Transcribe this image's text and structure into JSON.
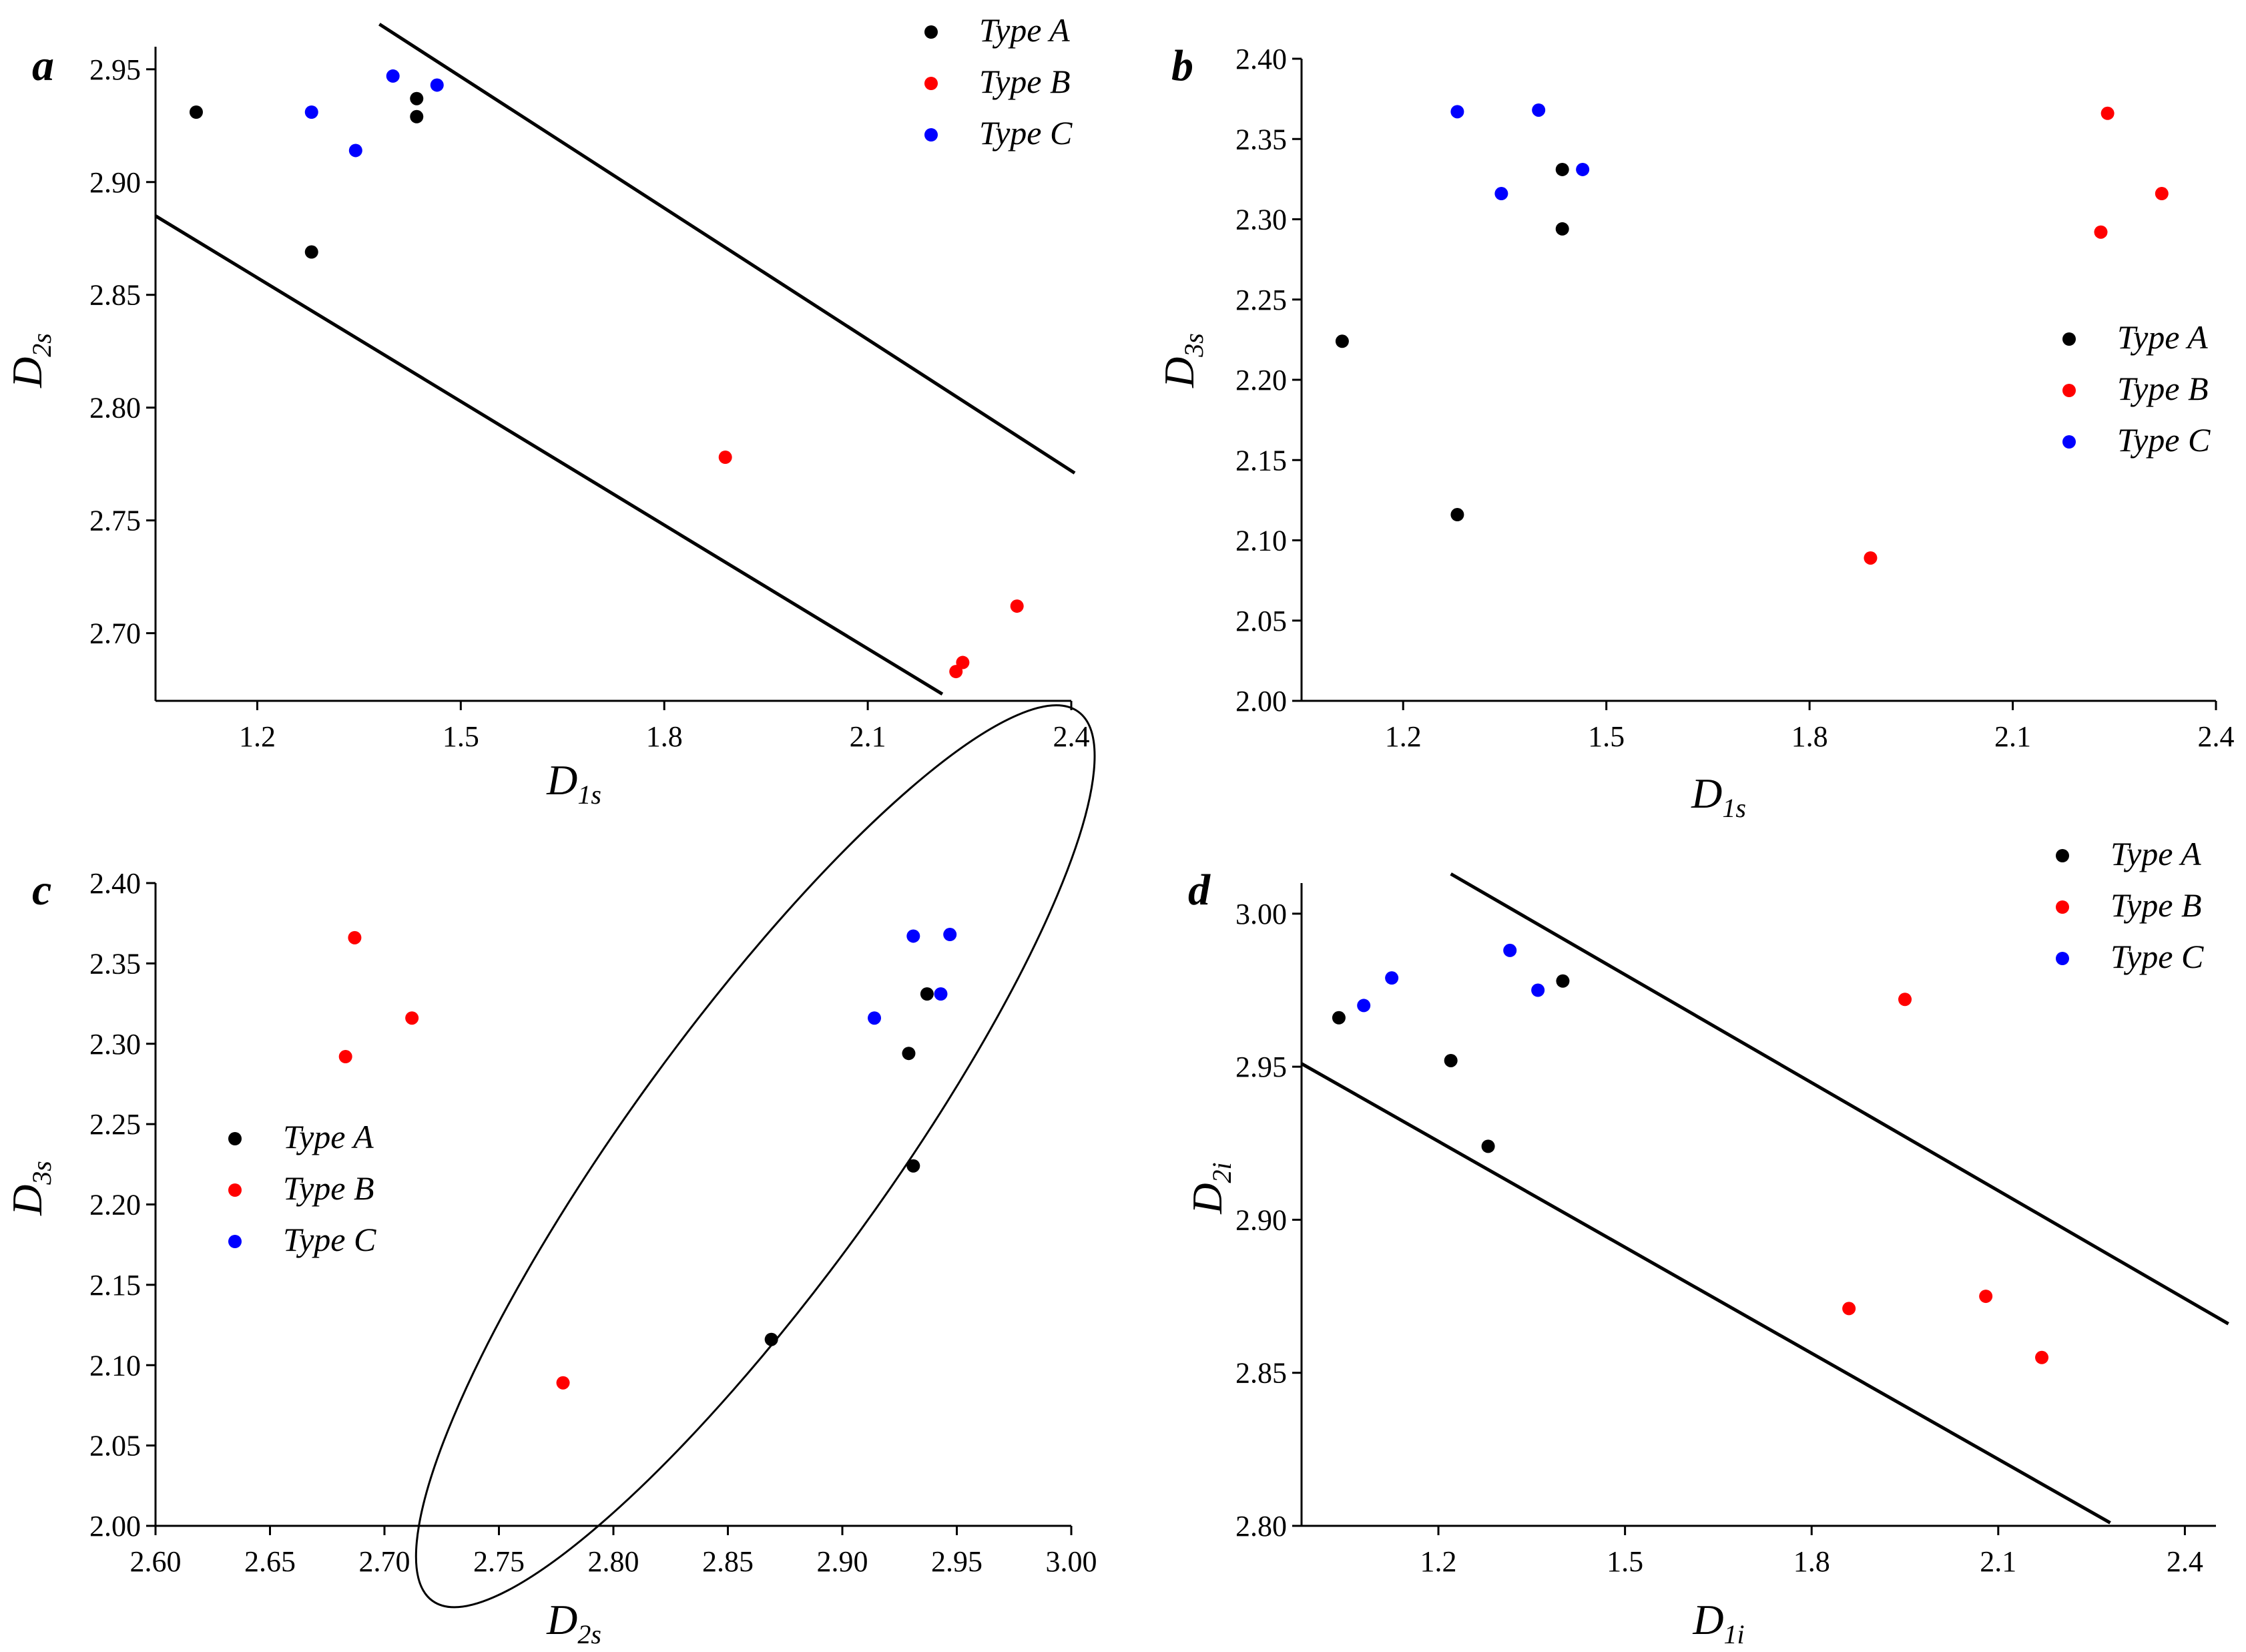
{
  "colors": {
    "Type A": "#000000",
    "Type B": "#ff0000",
    "Type C": "#0000ff"
  },
  "chart_data": [
    {
      "panel": "a",
      "type": "scatter",
      "xlabel": "D",
      "xlabel_sub": "1s",
      "ylabel": "D",
      "ylabel_sub": "2s",
      "xlim": [
        1.05,
        2.4
      ],
      "ylim": [
        2.67,
        2.96
      ],
      "xticks": [
        1.2,
        1.5,
        1.8,
        2.1,
        2.4
      ],
      "xtick_labels": [
        "1.2",
        "1.5",
        "1.8",
        "2.1",
        "2.4"
      ],
      "yticks": [
        2.7,
        2.75,
        2.8,
        2.85,
        2.9,
        2.95
      ],
      "ytick_labels": [
        "2.70",
        "2.75",
        "2.80",
        "2.85",
        "2.90",
        "2.95"
      ],
      "legend": [
        "Type A",
        "Type B",
        "Type C"
      ],
      "legend_position": "top-right",
      "series": [
        {
          "name": "Type A",
          "x": [
            1.11,
            1.28,
            1.435,
            1.435
          ],
          "y": [
            2.931,
            2.869,
            2.937,
            2.929
          ]
        },
        {
          "name": "Type B",
          "x": [
            1.89,
            2.23,
            2.24,
            2.32
          ],
          "y": [
            2.778,
            2.683,
            2.687,
            2.712
          ]
        },
        {
          "name": "Type C",
          "x": [
            1.28,
            1.345,
            1.4,
            1.465
          ],
          "y": [
            2.931,
            2.914,
            2.947,
            2.943
          ]
        }
      ],
      "lines": [
        {
          "x": [
            1.05,
            2.21
          ],
          "y": [
            2.885,
            2.673
          ]
        },
        {
          "x": [
            1.38,
            2.405
          ],
          "y": [
            2.97,
            2.771
          ]
        }
      ]
    },
    {
      "panel": "b",
      "type": "scatter",
      "xlabel": "D",
      "xlabel_sub": "1s",
      "ylabel": "D",
      "ylabel_sub": "3s",
      "xlim": [
        1.05,
        2.4
      ],
      "ylim": [
        2.0,
        2.4
      ],
      "xticks": [
        1.2,
        1.5,
        1.8,
        2.1,
        2.4
      ],
      "xtick_labels": [
        "1.2",
        "1.5",
        "1.8",
        "2.1",
        "2.4"
      ],
      "yticks": [
        2.0,
        2.05,
        2.1,
        2.15,
        2.2,
        2.25,
        2.3,
        2.35,
        2.4
      ],
      "ytick_labels": [
        "2.00",
        "2.05",
        "2.10",
        "2.15",
        "2.20",
        "2.25",
        "2.30",
        "2.35",
        "2.40"
      ],
      "legend": [
        "Type A",
        "Type B",
        "Type C"
      ],
      "legend_position": "right",
      "series": [
        {
          "name": "Type A",
          "x": [
            1.11,
            1.28,
            1.435,
            1.435
          ],
          "y": [
            2.224,
            2.116,
            2.331,
            2.294
          ]
        },
        {
          "name": "Type B",
          "x": [
            1.89,
            2.23,
            2.24,
            2.32
          ],
          "y": [
            2.089,
            2.292,
            2.366,
            2.316
          ]
        },
        {
          "name": "Type C",
          "x": [
            1.28,
            1.345,
            1.4,
            1.465
          ],
          "y": [
            2.367,
            2.316,
            2.368,
            2.331
          ]
        }
      ]
    },
    {
      "panel": "c",
      "type": "scatter",
      "xlabel": "D",
      "xlabel_sub": "2s",
      "ylabel": "D",
      "ylabel_sub": "3s",
      "xlim": [
        2.6,
        3.0
      ],
      "ylim": [
        2.0,
        2.4
      ],
      "xticks": [
        2.6,
        2.65,
        2.7,
        2.75,
        2.8,
        2.85,
        2.9,
        2.95,
        3.0
      ],
      "xtick_labels": [
        "2.60",
        "2.65",
        "2.70",
        "2.75",
        "2.80",
        "2.85",
        "2.90",
        "2.95",
        "3.00"
      ],
      "yticks": [
        2.0,
        2.05,
        2.1,
        2.15,
        2.2,
        2.25,
        2.3,
        2.35,
        2.4
      ],
      "ytick_labels": [
        "2.00",
        "2.05",
        "2.10",
        "2.15",
        "2.20",
        "2.25",
        "2.30",
        "2.35",
        "2.40"
      ],
      "legend": [
        "Type A",
        "Type B",
        "Type C"
      ],
      "legend_position": "left",
      "series": [
        {
          "name": "Type A",
          "x": [
            2.931,
            2.869,
            2.937,
            2.929
          ],
          "y": [
            2.224,
            2.116,
            2.331,
            2.294
          ]
        },
        {
          "name": "Type B",
          "x": [
            2.778,
            2.683,
            2.687,
            2.712
          ],
          "y": [
            2.089,
            2.292,
            2.366,
            2.316
          ]
        },
        {
          "name": "Type C",
          "x": [
            2.931,
            2.914,
            2.947,
            2.943
          ],
          "y": [
            2.367,
            2.316,
            2.368,
            2.331
          ]
        }
      ],
      "ellipse": {
        "cx": 2.862,
        "cy": 2.23,
        "tilt_deg": 54,
        "semi_major_x_span": 0.16,
        "semi_minor_y_span": 0.05
      }
    },
    {
      "panel": "d",
      "type": "scatter",
      "xlabel": "D",
      "xlabel_sub": "1i",
      "ylabel": "D",
      "ylabel_sub": "2i",
      "xlim": [
        0.98,
        2.45
      ],
      "ylim": [
        2.8,
        3.01
      ],
      "xticks": [
        1.2,
        1.5,
        1.8,
        2.1,
        2.4
      ],
      "xtick_labels": [
        "1.2",
        "1.5",
        "1.8",
        "2.1",
        "2.4"
      ],
      "yticks": [
        2.8,
        2.85,
        2.9,
        2.95,
        3.0
      ],
      "ytick_labels": [
        "2.80",
        "2.85",
        "2.90",
        "2.95",
        "3.00"
      ],
      "legend": [
        "Type A",
        "Type B",
        "Type C"
      ],
      "legend_position": "top-right",
      "series": [
        {
          "name": "Type A",
          "x": [
            1.04,
            1.22,
            1.28,
            1.4
          ],
          "y": [
            2.966,
            2.952,
            2.924,
            2.978
          ]
        },
        {
          "name": "Type B",
          "x": [
            1.86,
            1.95,
            2.08,
            2.17
          ],
          "y": [
            2.871,
            2.972,
            2.875,
            2.855
          ]
        },
        {
          "name": "Type C",
          "x": [
            1.08,
            1.125,
            1.315,
            1.36
          ],
          "y": [
            2.97,
            2.979,
            2.988,
            2.975
          ]
        }
      ],
      "lines": [
        {
          "x": [
            0.98,
            2.28
          ],
          "y": [
            2.951,
            2.801
          ]
        },
        {
          "x": [
            1.22,
            2.47
          ],
          "y": [
            3.013,
            2.866
          ]
        }
      ]
    }
  ]
}
